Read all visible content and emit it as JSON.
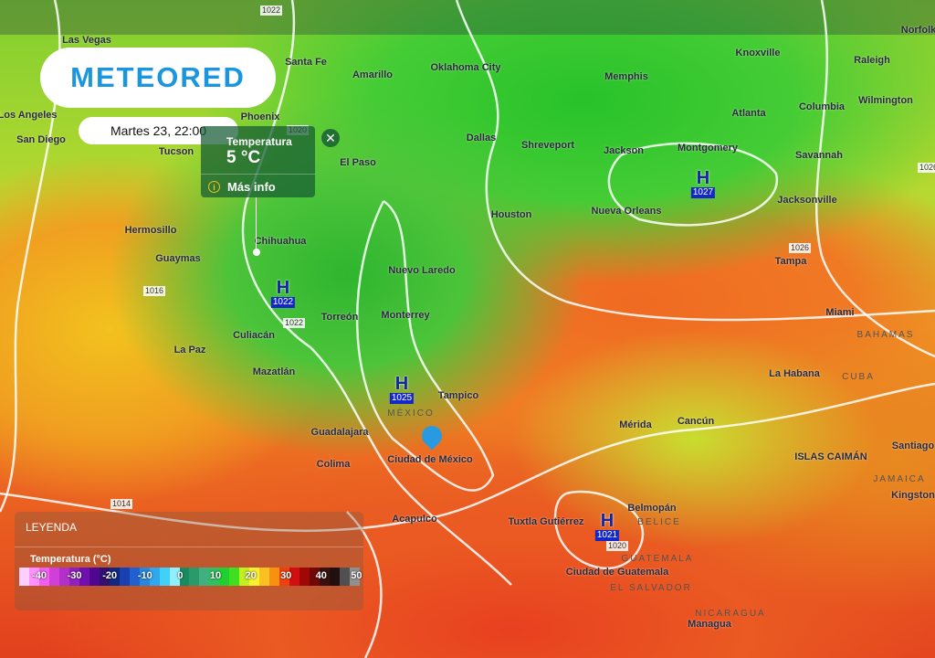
{
  "brand": {
    "logo": "METEORED",
    "color": "#1a95e0"
  },
  "date": "Martes 23, 22:00",
  "popup": {
    "title": "Temperatura",
    "value": "5 °C",
    "more": "Más info",
    "info_icon": "info-icon",
    "close_icon": "close-icon"
  },
  "cities": [
    "Las Vegas",
    "Santa Fe",
    "Amarillo",
    "Oklahoma City",
    "Knoxville",
    "Raleigh",
    "Norfolk",
    "Los Angeles",
    "Phoenix",
    "Memphis",
    "Wilmington",
    "San Diego",
    "Tucson",
    "El Paso",
    "Dallas",
    "Shreveport",
    "Jackson",
    "Montgomery",
    "Atlanta",
    "Columbia",
    "Savannah",
    "Jacksonville",
    "Hermosillo",
    "Houston",
    "Nueva Orleans",
    "Chihuahua",
    "Guaymas",
    "Nuevo Laredo",
    "Tampa",
    "Torreón",
    "Monterrey",
    "Culiacán",
    "Miami",
    "La Paz",
    "Mazatlán",
    "La Habana",
    "Tampico",
    "Mérida",
    "Cancún",
    "Guadalajara",
    "Ciudad de México",
    "Colima",
    "ISLAS CAIMÁN",
    "Santiago",
    "Acapulco",
    "Tuxtla Gutiérrez",
    "Belmopán",
    "Kingston",
    "Ciudad de Guatemala",
    "Managua"
  ],
  "countries": [
    "BAHAMAS",
    "MÉXICO",
    "CUBA",
    "BELICE",
    "GUATEMALA",
    "EL SALVADOR",
    "NICARAGUA",
    "JAMAICA"
  ],
  "highs": [
    {
      "label": "H",
      "pressure": "1022"
    },
    {
      "label": "H",
      "pressure": "1025"
    },
    {
      "label": "H",
      "pressure": "1027"
    },
    {
      "label": "H",
      "pressure": "1021"
    }
  ],
  "isobars": [
    "1022",
    "1020",
    "1016",
    "1022",
    "1014",
    "1026",
    "1020",
    "1026"
  ],
  "legend": {
    "title": "LEYENDA",
    "subtitle": "Temperatura (°C)",
    "ticks": [
      "-40",
      "-30",
      "-20",
      "-10",
      "0",
      "10",
      "20",
      "30",
      "40",
      "50"
    ],
    "colors": [
      "#ffd0ff",
      "#ff90ff",
      "#f060f0",
      "#d040d8",
      "#b030c8",
      "#9020c0",
      "#7010b0",
      "#500890",
      "#301070",
      "#102880",
      "#1840b0",
      "#2060d0",
      "#2888e0",
      "#30a8f0",
      "#40d0f8",
      "#90f0ff",
      "#1a8a60",
      "#2a9a6a",
      "#40b080",
      "#30c060",
      "#20d030",
      "#40e020",
      "#c0f020",
      "#f8f030",
      "#f8c020",
      "#f89010",
      "#f04010",
      "#d01010",
      "#a00808",
      "#700808",
      "#3a1010",
      "#201010",
      "#505050",
      "#909090"
    ]
  }
}
